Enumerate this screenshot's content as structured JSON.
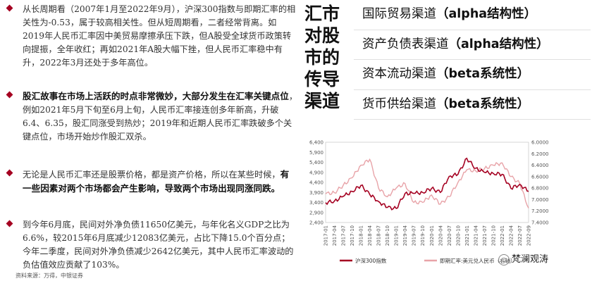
{
  "bullets": [
    {
      "parts": [
        {
          "t": "从长周期看（2007年1月至2022年9月），沪深300指数与即期汇率的相关性为-0.53，属于较高相关性。但从短周期看，二者经常背离。如2019年人民币汇率因中美贸易摩擦承压下跌，但A股受全球货币政策转向提振，全年收红；再如2021年A股大幅下挫，但人民币汇率稳中有升，2022年3月还处于多年高位。",
          "b": false
        }
      ]
    },
    {
      "parts": [
        {
          "t": "股汇故事在市场上活跃的时点非常微妙，大部分发生在汇率关键点位",
          "b": true
        },
        {
          "t": "，例如2021年5月下旬至6月上旬，人民币汇率接连创多年新高，升破6.4、6.35，股汇同涨受到热炒；2019年和近期人民币汇率跌破多个关键点位，市场开始炒作股汇双杀。",
          "b": false
        }
      ]
    },
    {
      "parts": [
        {
          "t": "无论是人民币汇率还是股票价格，都是资产价格，所以在某些时候，",
          "b": false
        },
        {
          "t": "有一些因素对两个市场都会产生影响，导致两个市场出现同涨同跌。",
          "b": true
        }
      ]
    },
    {
      "parts": [
        {
          "t": "到今年6月底，民间对外净负债11650亿美元，与年化名义GDP之比为6.6%，较2015年6月底减少12083亿美元，占比下降15.0个百分点；今年二季度，民间对外净负债减少2642亿美元，其中人民币汇率波动的负估值效应贡献了103%。",
          "b": false
        }
      ]
    }
  ],
  "title_chars": [
    "汇市",
    "对股",
    "市的",
    "传导",
    "渠道"
  ],
  "channels": [
    {
      "name": "国际贸易渠道",
      "tag": "（alpha结构性）"
    },
    {
      "name": "资产负债表渠道",
      "tag": "（alpha结构性）"
    },
    {
      "name": "资本流动渠道",
      "tag": "（beta系统性）"
    },
    {
      "name": "货币供给渠道",
      "tag": "（beta系统性）"
    }
  ],
  "chart_data": {
    "type": "line",
    "x": [
      "2017-01",
      "2017-04",
      "2017-07",
      "2017-10",
      "2018-01",
      "2018-04",
      "2018-07",
      "2018-10",
      "2019-01",
      "2019-04",
      "2019-07",
      "2019-10",
      "2020-01",
      "2020-04",
      "2020-07",
      "2020-10",
      "2021-01",
      "2021-04",
      "2021-07",
      "2021-10",
      "2022-01",
      "2022-04",
      "2022-07",
      "2022-09"
    ],
    "y_left_ticks": [
      "6,400",
      "5,900",
      "5,400",
      "4,900",
      "4,400",
      "3,900",
      "3,400",
      "2,900",
      "2,400"
    ],
    "y_right_ticks": [
      "6.0000",
      "6.2000",
      "6.4000",
      "6.6000",
      "6.8000",
      "7.0000",
      "7.2000",
      "7.4000"
    ],
    "ylim_left": [
      2400,
      6400
    ],
    "ylim_right_inverted": [
      6.0,
      7.4
    ],
    "series": [
      {
        "name": "沪深300指数",
        "axis": "left",
        "color": "#a50021",
        "values": [
          3390,
          3470,
          3700,
          3950,
          4250,
          3800,
          3450,
          3150,
          3100,
          3850,
          3850,
          3900,
          4100,
          3900,
          4700,
          4800,
          5600,
          5100,
          4900,
          4850,
          4800,
          4100,
          4300,
          3950
        ]
      },
      {
        "name": "即期汇率:美元兑人民币（右轴）",
        "axis": "right",
        "color": "#e8a3a8",
        "values": [
          6.9,
          6.88,
          6.75,
          6.62,
          6.4,
          6.3,
          6.8,
          6.95,
          6.8,
          6.72,
          7.05,
          7.05,
          6.92,
          7.08,
          6.95,
          6.7,
          6.48,
          6.5,
          6.46,
          6.4,
          6.36,
          6.6,
          6.72,
          7.15
        ]
      }
    ]
  },
  "source": "资料来源：万得，中银证券",
  "watermark": "梵澜观涛"
}
